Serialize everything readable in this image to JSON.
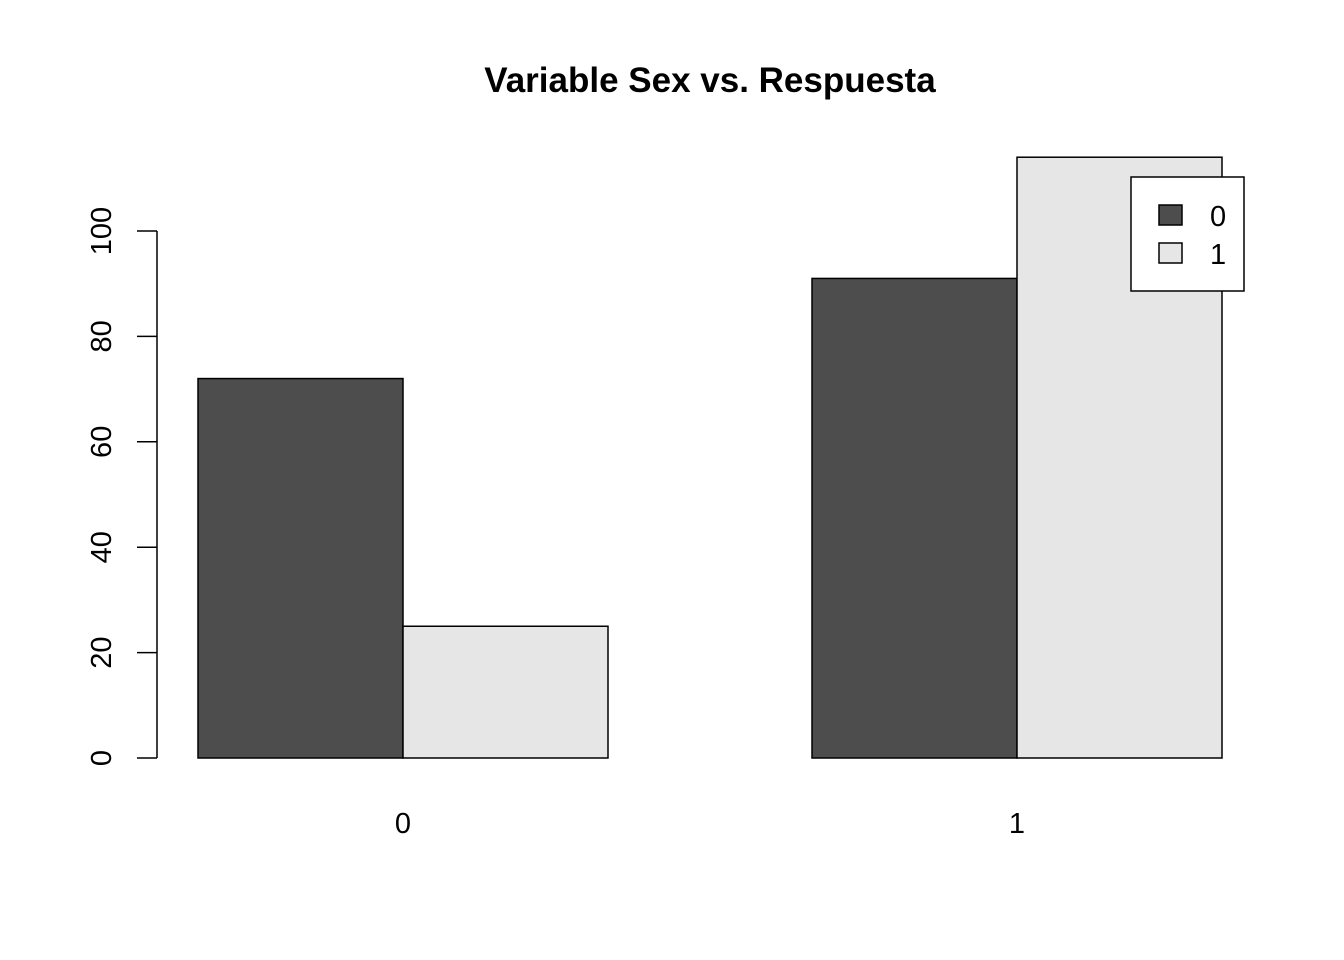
{
  "chart_data": {
    "type": "bar",
    "grouping": "grouped",
    "title": "Variable Sex vs. Respuesta",
    "xlabel": "",
    "ylabel": "",
    "categories": [
      "0",
      "1"
    ],
    "series": [
      {
        "name": "0",
        "values": [
          72,
          91
        ],
        "color": "#4d4d4d"
      },
      {
        "name": "1",
        "values": [
          25,
          114
        ],
        "color": "#e6e6e6"
      }
    ],
    "yticks": [
      0,
      20,
      40,
      60,
      80,
      100
    ],
    "ylim": [
      0,
      114
    ],
    "grid": false,
    "legend": {
      "position": "top-right",
      "entries": [
        "0",
        "1"
      ]
    }
  }
}
